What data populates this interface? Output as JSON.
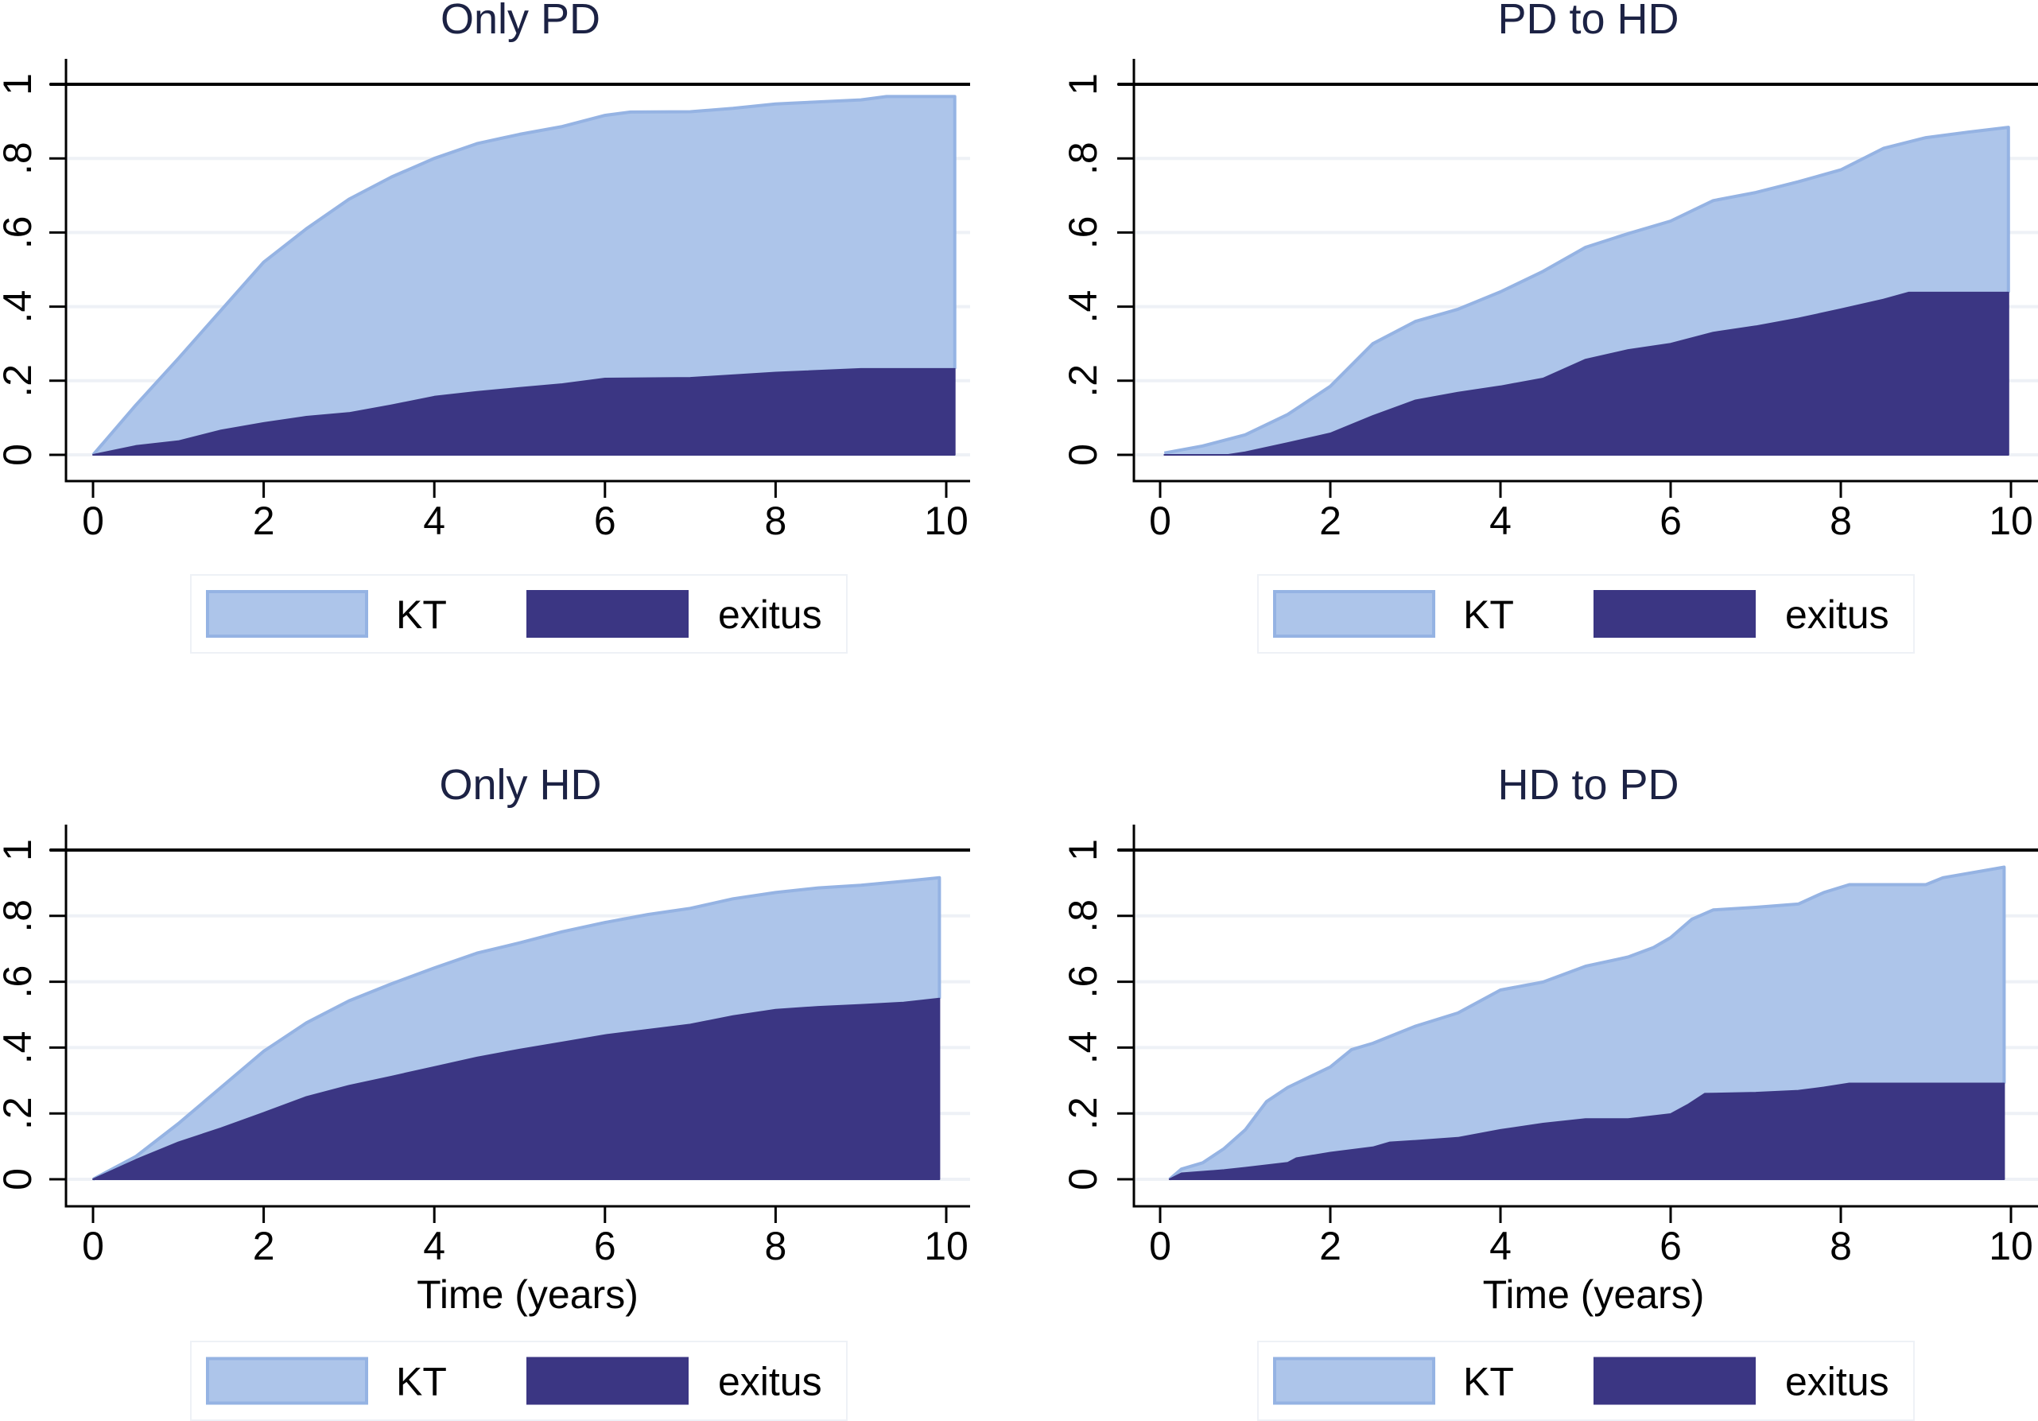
{
  "figure": {
    "colors": {
      "kt_fill": "#adc5ea",
      "kt_line": "#95b3e3",
      "exitus_fill": "#3b3683",
      "title": "#1c2244",
      "grid": "#eef1f6",
      "axis": "#000000"
    }
  },
  "chart_data": [
    {
      "type": "area",
      "stacked": true,
      "title": "Only PD",
      "xlabel": "",
      "ylabel": "",
      "xlim": [
        0,
        10
      ],
      "ylim": [
        0,
        1
      ],
      "xticks": [
        "0",
        "2",
        "4",
        "6",
        "8",
        "10"
      ],
      "yticks": [
        "0",
        ".2",
        ".4",
        ".6",
        ".8",
        "1"
      ],
      "reference_line": 1,
      "grid": true,
      "legend": {
        "position": "bottom",
        "entries": [
          "KT",
          "exitus"
        ]
      },
      "series": [
        {
          "name": "KT",
          "role": "cumulative total (top of stack)",
          "x": [
            0,
            0.5,
            1,
            1.5,
            2,
            2.5,
            3,
            3.5,
            4,
            4.5,
            5,
            5.5,
            6,
            6.3,
            7,
            7.5,
            8,
            9,
            9.3,
            10.1
          ],
          "y": [
            0,
            0.134,
            0.26,
            0.39,
            0.52,
            0.61,
            0.69,
            0.75,
            0.8,
            0.84,
            0.865,
            0.886,
            0.916,
            0.925,
            0.926,
            0.935,
            0.947,
            0.958,
            0.967,
            0.967
          ]
        },
        {
          "name": "exitus",
          "role": "bottom of stack",
          "x": [
            0,
            0.5,
            1,
            1.5,
            2,
            2.5,
            3,
            3.5,
            4,
            4.5,
            5,
            5.5,
            6,
            7,
            8,
            9,
            10.1
          ],
          "y": [
            0,
            0.024,
            0.037,
            0.066,
            0.086,
            0.103,
            0.113,
            0.134,
            0.157,
            0.17,
            0.181,
            0.191,
            0.206,
            0.208,
            0.222,
            0.232,
            0.232
          ]
        }
      ]
    },
    {
      "type": "area",
      "stacked": true,
      "title": "PD to HD",
      "xlabel": "",
      "ylabel": "",
      "xlim": [
        0,
        10
      ],
      "ylim": [
        0,
        1
      ],
      "xticks": [
        "0",
        "2",
        "4",
        "6",
        "8",
        "10"
      ],
      "yticks": [
        "0",
        ".2",
        ".4",
        ".6",
        ".8",
        "1"
      ],
      "reference_line": 1,
      "grid": true,
      "legend": {
        "position": "bottom",
        "entries": [
          "KT",
          "exitus"
        ]
      },
      "series": [
        {
          "name": "KT",
          "role": "cumulative total (top of stack)",
          "x": [
            0.05,
            0.5,
            1,
            1.5,
            2,
            2.5,
            3,
            3.5,
            4,
            4.5,
            5,
            5.5,
            6,
            6.5,
            7,
            7.5,
            8,
            8.5,
            9,
            9.5,
            9.97
          ],
          "y": [
            0.005,
            0.024,
            0.054,
            0.109,
            0.185,
            0.3,
            0.36,
            0.393,
            0.44,
            0.495,
            0.56,
            0.597,
            0.631,
            0.686,
            0.708,
            0.737,
            0.769,
            0.827,
            0.856,
            0.871,
            0.884
          ]
        },
        {
          "name": "exitus",
          "role": "bottom of stack",
          "x": [
            0.05,
            0.8,
            1,
            1.5,
            2,
            2.5,
            3,
            3.5,
            4,
            4.5,
            5,
            5.5,
            6,
            6.5,
            7,
            7.5,
            8,
            8.5,
            8.8,
            9.97
          ],
          "y": [
            0,
            0,
            0.007,
            0.032,
            0.058,
            0.105,
            0.147,
            0.168,
            0.185,
            0.206,
            0.257,
            0.283,
            0.3,
            0.33,
            0.347,
            0.368,
            0.393,
            0.419,
            0.438,
            0.438
          ]
        }
      ]
    },
    {
      "type": "area",
      "stacked": true,
      "title": "Only HD",
      "xlabel": "Time (years)",
      "ylabel": "",
      "xlim": [
        0,
        10
      ],
      "ylim": [
        0,
        1
      ],
      "xticks": [
        "0",
        "2",
        "4",
        "6",
        "8",
        "10"
      ],
      "yticks": [
        "0",
        ".2",
        ".4",
        ".6",
        ".8",
        "1"
      ],
      "reference_line": 1,
      "grid": true,
      "legend": {
        "position": "bottom",
        "entries": [
          "KT",
          "exitus"
        ]
      },
      "series": [
        {
          "name": "KT",
          "role": "cumulative total (top of stack)",
          "x": [
            0,
            0.5,
            1,
            1.5,
            2,
            2.5,
            3,
            3.5,
            4,
            4.5,
            5,
            5.5,
            6,
            6.5,
            7,
            7.5,
            8,
            8.5,
            9,
            9.5,
            9.92
          ],
          "y": [
            0,
            0.069,
            0.169,
            0.279,
            0.389,
            0.475,
            0.542,
            0.594,
            0.642,
            0.687,
            0.718,
            0.752,
            0.78,
            0.804,
            0.823,
            0.852,
            0.871,
            0.885,
            0.893,
            0.905,
            0.916
          ]
        },
        {
          "name": "exitus",
          "role": "bottom of stack",
          "x": [
            0,
            0.5,
            1,
            1.5,
            2,
            2.5,
            3,
            3.5,
            4,
            4.5,
            5,
            5.5,
            6,
            6.5,
            7,
            7.5,
            8,
            8.5,
            9,
            9.5,
            9.92
          ],
          "y": [
            0,
            0.059,
            0.112,
            0.155,
            0.202,
            0.25,
            0.284,
            0.312,
            0.341,
            0.37,
            0.394,
            0.416,
            0.438,
            0.454,
            0.47,
            0.496,
            0.515,
            0.524,
            0.53,
            0.537,
            0.549
          ]
        }
      ]
    },
    {
      "type": "area",
      "stacked": true,
      "title": "HD to PD",
      "xlabel": "Time (years)",
      "ylabel": "",
      "xlim": [
        0,
        10
      ],
      "ylim": [
        0,
        1
      ],
      "xticks": [
        "0",
        "2",
        "4",
        "6",
        "8",
        "10"
      ],
      "yticks": [
        "0",
        ".2",
        ".4",
        ".6",
        ".8",
        "1"
      ],
      "reference_line": 1,
      "grid": true,
      "legend": {
        "position": "bottom",
        "entries": [
          "KT",
          "exitus"
        ]
      },
      "series": [
        {
          "name": "KT",
          "role": "cumulative total (top of stack)",
          "x": [
            0.11,
            0.25,
            0.5,
            0.75,
            1,
            1.25,
            1.5,
            2,
            2.25,
            2.5,
            3,
            3.5,
            4,
            4.5,
            5,
            5.5,
            5.8,
            6,
            6.25,
            6.5,
            7,
            7.5,
            7.8,
            8.1,
            9,
            9.2,
            9.92
          ],
          "y": [
            0,
            0.031,
            0.05,
            0.093,
            0.15,
            0.236,
            0.279,
            0.341,
            0.394,
            0.413,
            0.465,
            0.505,
            0.575,
            0.599,
            0.647,
            0.675,
            0.704,
            0.734,
            0.79,
            0.818,
            0.826,
            0.836,
            0.871,
            0.895,
            0.895,
            0.916,
            0.948
          ]
        },
        {
          "name": "exitus",
          "role": "bottom of stack",
          "x": [
            0.11,
            0.25,
            0.75,
            1,
            1.5,
            1.6,
            2,
            2.5,
            2.7,
            3,
            3.5,
            4,
            4.5,
            5,
            5.5,
            6,
            6.2,
            6.4,
            7,
            7.5,
            7.8,
            8.1,
            9.92
          ],
          "y": [
            0,
            0.018,
            0.028,
            0.035,
            0.05,
            0.064,
            0.081,
            0.097,
            0.112,
            0.117,
            0.126,
            0.15,
            0.169,
            0.183,
            0.183,
            0.198,
            0.226,
            0.26,
            0.263,
            0.269,
            0.279,
            0.291,
            0.291
          ]
        }
      ]
    }
  ]
}
